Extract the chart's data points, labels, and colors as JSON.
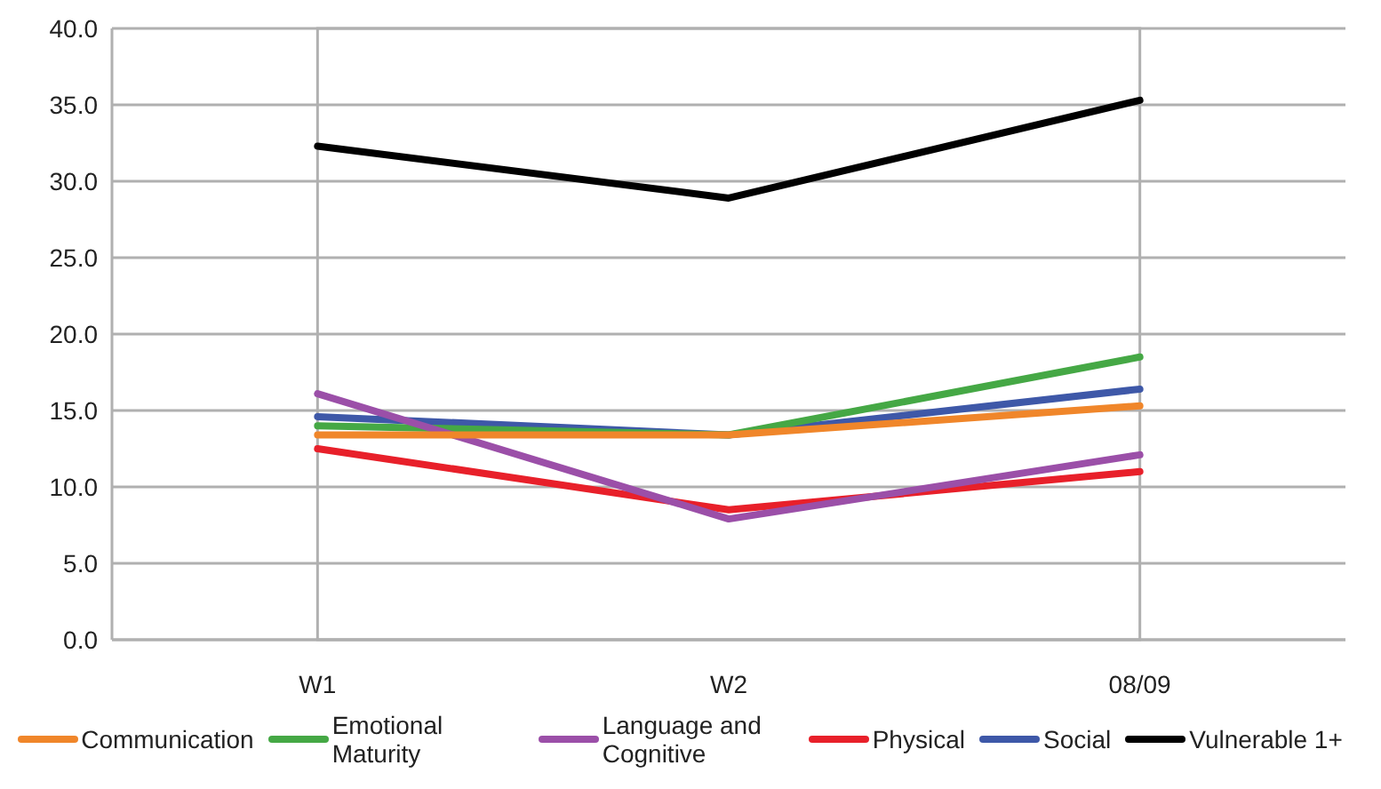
{
  "chart_data": {
    "type": "line",
    "categories": [
      "W1",
      "W2",
      "08/09"
    ],
    "series": [
      {
        "name": "Physical",
        "color": "#e8202a",
        "values": [
          12.5,
          8.5,
          11.0
        ]
      },
      {
        "name": "Social",
        "color": "#3e58a8",
        "values": [
          14.6,
          13.4,
          16.4
        ]
      },
      {
        "name": "Emotional Maturity",
        "color": "#45a845",
        "values": [
          14.0,
          13.4,
          18.5
        ]
      },
      {
        "name": "Language and Cognitive",
        "color": "#9b4fa8",
        "values": [
          16.1,
          7.9,
          12.1
        ]
      },
      {
        "name": "Communication",
        "color": "#f0862a",
        "values": [
          13.4,
          13.4,
          15.3
        ]
      },
      {
        "name": "Vulnerable 1+",
        "color": "#000000",
        "values": [
          32.3,
          28.9,
          35.3
        ]
      }
    ],
    "ylim": [
      0,
      40
    ],
    "yticks": [
      {
        "value": 0,
        "label": "0.0"
      },
      {
        "value": 5,
        "label": "5.0"
      },
      {
        "value": 10,
        "label": "10.0"
      },
      {
        "value": 15,
        "label": "15.0"
      },
      {
        "value": 20,
        "label": "20.0"
      },
      {
        "value": 25,
        "label": "25.0"
      },
      {
        "value": 30,
        "label": "30.0"
      },
      {
        "value": 35,
        "label": "35.0"
      },
      {
        "value": 40,
        "label": "40.0"
      }
    ],
    "grid": "y",
    "legend": "bottom",
    "marker": "none",
    "line_style": "solid"
  }
}
